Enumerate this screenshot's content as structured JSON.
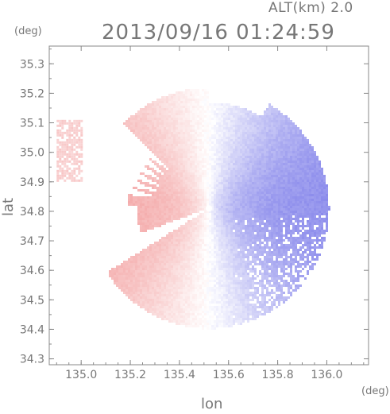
{
  "header": {
    "altitude_label": "ALT(km) 2.0",
    "timestamp": "2013/09/16 01:24:59"
  },
  "chart_data": {
    "type": "heatmap",
    "title": "2013/09/16 01:24:59",
    "subtitle": "ALT(km) 2.0",
    "xlabel": "lon",
    "ylabel": "lat",
    "xunit": "(deg)",
    "yunit": "(deg)",
    "xlim": [
      134.87,
      136.17
    ],
    "ylim": [
      34.28,
      35.36
    ],
    "xticks": [
      135.0,
      135.2,
      135.4,
      135.6,
      135.8,
      136.0
    ],
    "xtick_labels": [
      "135.0",
      "135.2",
      "135.4",
      "135.6",
      "135.8",
      "136.0"
    ],
    "yticks": [
      34.3,
      34.4,
      34.5,
      34.6,
      34.7,
      34.8,
      34.9,
      35.0,
      35.1,
      35.2,
      35.3
    ],
    "ytick_labels": [
      "34.3",
      "34.4",
      "34.5",
      "34.6",
      "34.7",
      "34.8",
      "34.9",
      "35.0",
      "35.1",
      "35.2",
      "35.3"
    ],
    "grid": false,
    "radar_center": {
      "lon": 135.52,
      "lat": 34.81
    },
    "radar_range_deg": 0.49,
    "colormap": {
      "negative": "#6a6ae6",
      "zero": "#ffffff",
      "positive": "#f08c8c"
    },
    "velocity_pattern": "red-west / blue-east radial velocity, white zero line through radar center"
  }
}
